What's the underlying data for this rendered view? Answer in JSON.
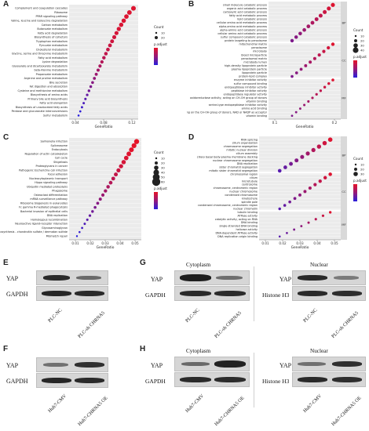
{
  "panels": {
    "A": {
      "label": "A",
      "xlabel": "GeneRatio",
      "xticks": [
        "0.04",
        "0.08",
        "0.12"
      ],
      "terms": [
        "Complement and coagulation cascades",
        "Ribosome",
        "PPAR signaling pathway",
        "Valine, leucine and isoleucine degradation",
        "Carbon metabolism",
        "Butanoate metabolism",
        "Fatty acid degradation",
        "Biosynthesis of cofactors",
        "Tryptophan metabolism",
        "Pyruvate metabolism",
        "Cholesterol metabolism",
        "Glycine, serine and threonine metabolism",
        "Fatty acid metabolism",
        "Lysine degradation",
        "Glyoxylate and dicarboxylate metabolism",
        "beta-Alanine metabolism",
        "Propanoate metabolism",
        "Arginine and proline metabolism",
        "Bile secretion",
        "Fat digestion and absorption",
        "Cysteine and methionine metabolism",
        "Biosynthesis of amino acids",
        "Primary bile acid biosynthesis",
        "Fatty acid elongation",
        "Biosynthesis of unsaturated fatty acids",
        "Pentose and glucuronate interconversions",
        "Sulfur metabolism"
      ],
      "legend": {
        "count_title": "Count",
        "count_values": [
          "10",
          "20"
        ],
        "p_title": "p.adjust"
      }
    },
    "B": {
      "label": "B",
      "xlabel": "GeneRatio",
      "xticks": [
        "0.1",
        "0.2"
      ],
      "groups": [
        "BP",
        "CC",
        "MF"
      ],
      "terms": [
        "small molecule catabolic process",
        "organic acid catabolic process",
        "carboxylic acid catabolic process",
        "fatty acid metabolic process",
        "lipid catabolic process",
        "cellular amino acid metabolic process",
        "alpha-amino acid metabolic process",
        "alpha-amino acid catabolic process",
        "cellular amino acid catabolic process",
        "sulfur compound catabolic process",
        "protein targeting to peroxisome",
        "mitochondrial matrix",
        "peroxisome",
        "microbody",
        "blood microparticle",
        "peroxisomal matrix",
        "microbody lumen",
        "high-density lipoprotein particle",
        "plasma lipoprotein particle",
        "lipoprotein particle",
        "protein-lipid complex",
        "enzyme inhibitor activity",
        "sulfur compound binding",
        "endopeptidase inhibitor activity",
        "peptidase inhibitor activity",
        "endopeptidase regulator activity",
        "oxidoreductase activity, acting on CH-OH group of donors",
        "vitamin binding",
        "serine-type endopeptidase inhibitor activity",
        "amino acid binding",
        "oxidoreductase activity, acting on the CH-OH group of donors, NAD or NADP as acceptor",
        "vitamin binding"
      ],
      "legend": {
        "count_title": "Count",
        "count_values": [
          "10",
          "20",
          "30",
          "40"
        ],
        "p_title": "p.adjust"
      }
    },
    "C": {
      "label": "C",
      "xlabel": "GeneRatio",
      "xticks": [
        "0.01",
        "0.02",
        "0.03",
        "0.04",
        "0.05"
      ],
      "terms": [
        "Salmonella infection",
        "Spliceosome",
        "Endocytosis",
        "Regulation of actin cytoskeleton",
        "Cell cycle",
        "Shigellosis",
        "Proteoglycans in cancer",
        "Pathogenic Escherichia coli infection",
        "Focal adhesion",
        "Nucleocytoplasmic transport",
        "Hippo signaling pathway",
        "Ubiquitin mediated proteolysis",
        "Phagosome",
        "Osteoclast differentiation",
        "mRNA surveillance pathway",
        "Ribosome biogenesis in eukaryotes",
        "Fc gamma R-mediated phagocytosis",
        "Bacterial invasion of epithelial cells",
        "DNA replication",
        "Homologous recombination",
        "Neuroactive ligand-receptor interaction",
        "Glycosaminoglycan",
        "biosynthesis - chondroitin sulfate / dermatan sulfate",
        "Mismatch repair"
      ],
      "legend": {
        "count_title": "Count",
        "count_values": [
          "10",
          "20",
          "30",
          "40",
          "50",
          "60"
        ],
        "p_title": "p.adjust"
      }
    },
    "D": {
      "label": "D",
      "xlabel": "GeneRatio",
      "xticks": [
        "0.01",
        "0.02",
        "0.03",
        "0.04",
        "0.05"
      ],
      "groups": [
        "BP",
        "CC",
        "MF"
      ],
      "terms": [
        "RNA splicing",
        "cilium organization",
        "chromosome segregation",
        "mitotic nuclear division",
        "cilium assembly",
        "ciliary basal body-plasma membrane docking",
        "nuclear chromosome segregation",
        "DNA replication",
        "sister chromatid segregation",
        "mitotic sister chromatid segregation",
        "chromosomal region",
        "cilium",
        "microtubule",
        "centrosome",
        "chromosome, centromeric region",
        "nuclear chromosome",
        "condensed chromosome",
        "kinetochore",
        "spindle pole",
        "condensed chromosome, centromeric region",
        "nuclear chromatin",
        "tubulin binding",
        "ATPase activity",
        "catalytic activity, acting on RNA",
        "DNA binding",
        "single-stranded DNA binding",
        "helicase activity",
        "DNA-dependent ATPase activity",
        "DNA replication origin binding"
      ],
      "legend": {
        "count_title": "Count",
        "count_values": [
          "10",
          "20",
          "30"
        ],
        "p_title": "p.adjust"
      }
    },
    "E": {
      "label": "E",
      "rows": [
        "YAP",
        "GAPDH"
      ],
      "lanes": [
        "PLC-NC",
        "PLC-sh CHRNA5"
      ]
    },
    "F": {
      "label": "F",
      "rows": [
        "YAP",
        "GAPDH"
      ],
      "lanes": [
        "Huh7-CMV",
        "Huh7-CHRNA5 OE"
      ]
    },
    "G": {
      "label": "G",
      "cyto_title": "Cytoplasm",
      "nuc_title": "Nuclear",
      "cyto_rows": [
        "YAP",
        "GAPDH"
      ],
      "nuc_rows": [
        "YAP",
        "Histone H3"
      ],
      "cyto_lanes": [
        "PLC-NC",
        "PLC-sh CHRNA5"
      ],
      "nuc_lanes": [
        "PLC-NC",
        "PLC-sh CHRNA5"
      ]
    },
    "H": {
      "label": "H",
      "cyto_title": "Cytoplasm",
      "nuc_title": "Nuclear",
      "cyto_rows": [
        "YAP",
        "GAPDH"
      ],
      "nuc_rows": [
        "YAP",
        "Histone H3"
      ],
      "cyto_lanes": [
        "Huh7-CMV",
        "Huh7-CHRNA5 OE"
      ],
      "nuc_lanes": [
        "Huh7-CMV",
        "Huh7-CHRNA5 OE"
      ]
    }
  },
  "chart_data": [
    {
      "type": "scatter",
      "panel": "A",
      "xlabel": "GeneRatio",
      "categories": [
        "Complement and coagulation cascades",
        "Ribosome",
        "PPAR signaling pathway",
        "Valine, leucine and isoleucine degradation",
        "Carbon metabolism",
        "Butanoate metabolism",
        "Fatty acid degradation",
        "Biosynthesis of cofactors",
        "Tryptophan metabolism",
        "Pyruvate metabolism",
        "Cholesterol metabolism",
        "Glycine, serine and threonine metabolism",
        "Fatty acid metabolism",
        "Lysine degradation",
        "Glyoxylate and dicarboxylate metabolism",
        "beta-Alanine metabolism",
        "Propanoate metabolism",
        "Arginine and proline metabolism",
        "Bile secretion",
        "Fat digestion and absorption",
        "Cysteine and methionine metabolism",
        "Biosynthesis of amino acids",
        "Primary bile acid biosynthesis",
        "Fatty acid elongation",
        "Biosynthesis of unsaturated fatty acids",
        "Pentose and glucuronate interconversions",
        "Sulfur metabolism"
      ],
      "x": [
        0.13,
        0.12,
        0.11,
        0.1,
        0.1,
        0.095,
        0.09,
        0.09,
        0.085,
        0.085,
        0.08,
        0.08,
        0.08,
        0.075,
        0.075,
        0.07,
        0.07,
        0.065,
        0.065,
        0.06,
        0.06,
        0.055,
        0.055,
        0.05,
        0.05,
        0.045,
        0.04
      ],
      "xlim": [
        0.02,
        0.14
      ]
    },
    {
      "type": "scatter",
      "panel": "C",
      "xlabel": "GeneRatio",
      "categories": [
        "Salmonella infection",
        "Spliceosome",
        "Endocytosis",
        "Regulation of actin cytoskeleton",
        "Cell cycle",
        "Shigellosis",
        "Proteoglycans in cancer",
        "Pathogenic Escherichia coli infection",
        "Focal adhesion",
        "Nucleocytoplasmic transport",
        "Hippo signaling pathway",
        "Ubiquitin mediated proteolysis",
        "Phagosome",
        "Osteoclast differentiation",
        "mRNA surveillance pathway",
        "Ribosome biogenesis in eukaryotes",
        "Fc gamma R-mediated phagocytosis",
        "Bacterial invasion of epithelial cells",
        "DNA replication",
        "Homologous recombination",
        "Neuroactive ligand-receptor interaction",
        "Glycosaminoglycan",
        "biosynthesis - chondroitin sulfate / dermatan sulfate",
        "Mismatch repair"
      ],
      "x": [
        0.055,
        0.053,
        0.05,
        0.048,
        0.046,
        0.044,
        0.043,
        0.041,
        0.039,
        0.037,
        0.036,
        0.034,
        0.033,
        0.031,
        0.03,
        0.029,
        0.027,
        0.026,
        0.024,
        0.022,
        0.021,
        0.019,
        0.018,
        0.016
      ],
      "xlim": [
        0.005,
        0.06
      ]
    }
  ]
}
